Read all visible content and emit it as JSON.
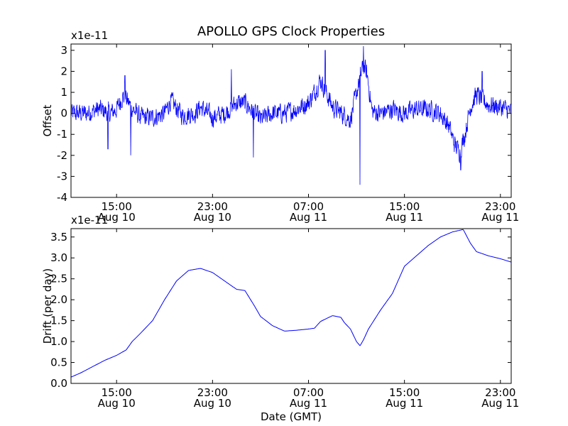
{
  "chart_data": {
    "type": "line",
    "title": "APOLLO GPS Clock Properties",
    "line_color": "#0000ff",
    "x_ticks": [
      {
        "time": "15:00",
        "date": "Aug 10"
      },
      {
        "time": "23:00",
        "date": "Aug 10"
      },
      {
        "time": "07:00",
        "date": "Aug 11"
      },
      {
        "time": "15:00",
        "date": "Aug 11"
      },
      {
        "time": "23:00",
        "date": "Aug 11"
      }
    ],
    "x_tick_hours": [
      15,
      23,
      31,
      39,
      47
    ],
    "xlim_hours": [
      11.2,
      47.9
    ],
    "xlabel": "Date (GMT)",
    "panels": [
      {
        "id": "offset",
        "ylabel": "Offset",
        "scale_label": "x1e-11",
        "ylim": [
          -4,
          3.3
        ],
        "yticks": [
          -4,
          -3,
          -2,
          -1,
          0,
          1,
          2,
          3
        ],
        "series": {
          "name": "Offset",
          "kind": "noisy",
          "x_hours": [
            11.2,
            12.5,
            13.5,
            14.5,
            15.0,
            15.5,
            15.8,
            16.2,
            17.0,
            18.0,
            19.0,
            19.5,
            20.5,
            21.5,
            22.0,
            23.0,
            24.0,
            25.0,
            25.7,
            26.5,
            27.0,
            28.0,
            29.0,
            30.0,
            31.0,
            31.5,
            32.0,
            32.3,
            32.7,
            33.0,
            33.8,
            34.5,
            35.3,
            35.6,
            35.9,
            36.3,
            37.0,
            38.0,
            39.0,
            40.0,
            41.0,
            42.0,
            42.7,
            43.2,
            43.6,
            44.0,
            44.5,
            45.0,
            46.0,
            47.0,
            47.9
          ],
          "y": [
            0.0,
            0.0,
            0.2,
            0.0,
            0.2,
            0.8,
            0.7,
            0.3,
            -0.2,
            -0.2,
            0.0,
            0.6,
            -0.1,
            0.0,
            0.3,
            -0.2,
            0.0,
            0.5,
            0.5,
            0.0,
            -0.3,
            0.0,
            0.0,
            0.2,
            0.5,
            1.0,
            1.6,
            1.2,
            0.7,
            0.3,
            0.0,
            -0.3,
            1.7,
            2.3,
            1.8,
            0.1,
            0.0,
            0.2,
            0.0,
            0.2,
            0.2,
            0.0,
            -0.6,
            -1.5,
            -1.8,
            -1.1,
            0.3,
            0.9,
            0.4,
            0.3,
            0.1
          ],
          "noise_amplitude": 0.55,
          "spikes": [
            {
              "x_hours": 15.7,
              "y": 1.8
            },
            {
              "x_hours": 16.2,
              "y": -2.0
            },
            {
              "x_hours": 14.3,
              "y": -1.7
            },
            {
              "x_hours": 24.6,
              "y": 2.1
            },
            {
              "x_hours": 26.4,
              "y": -2.1
            },
            {
              "x_hours": 32.4,
              "y": 3.0
            },
            {
              "x_hours": 35.3,
              "y": -3.4
            },
            {
              "x_hours": 35.6,
              "y": 3.2
            },
            {
              "x_hours": 43.7,
              "y": -2.7
            },
            {
              "x_hours": 45.5,
              "y": 2.0
            }
          ]
        }
      },
      {
        "id": "drift",
        "ylabel": "Drift (per day)",
        "scale_label": "x1e-11",
        "ylim": [
          0.0,
          3.7
        ],
        "yticks": [
          0.0,
          0.5,
          1.0,
          1.5,
          2.0,
          2.5,
          3.0,
          3.5
        ],
        "series": {
          "name": "Drift",
          "kind": "smooth",
          "x_hours": [
            11.2,
            12.0,
            13.0,
            14.0,
            15.0,
            15.8,
            16.3,
            17.0,
            18.0,
            19.0,
            20.0,
            21.0,
            22.0,
            23.0,
            24.0,
            25.0,
            25.7,
            26.5,
            27.0,
            28.0,
            29.0,
            30.0,
            31.0,
            31.5,
            32.0,
            33.0,
            33.7,
            34.0,
            34.5,
            35.0,
            35.3,
            35.6,
            36.0,
            37.0,
            38.0,
            39.0,
            40.0,
            41.0,
            42.0,
            43.0,
            43.9,
            44.5,
            45.0,
            46.0,
            47.0,
            47.9
          ],
          "y": [
            0.15,
            0.25,
            0.4,
            0.55,
            0.67,
            0.8,
            1.0,
            1.2,
            1.5,
            2.0,
            2.45,
            2.7,
            2.75,
            2.65,
            2.45,
            2.25,
            2.22,
            1.85,
            1.6,
            1.38,
            1.25,
            1.27,
            1.3,
            1.32,
            1.48,
            1.62,
            1.58,
            1.45,
            1.3,
            1.0,
            0.9,
            1.05,
            1.3,
            1.75,
            2.15,
            2.8,
            3.05,
            3.3,
            3.5,
            3.62,
            3.68,
            3.35,
            3.15,
            3.05,
            2.98,
            2.9
          ]
        }
      }
    ]
  }
}
